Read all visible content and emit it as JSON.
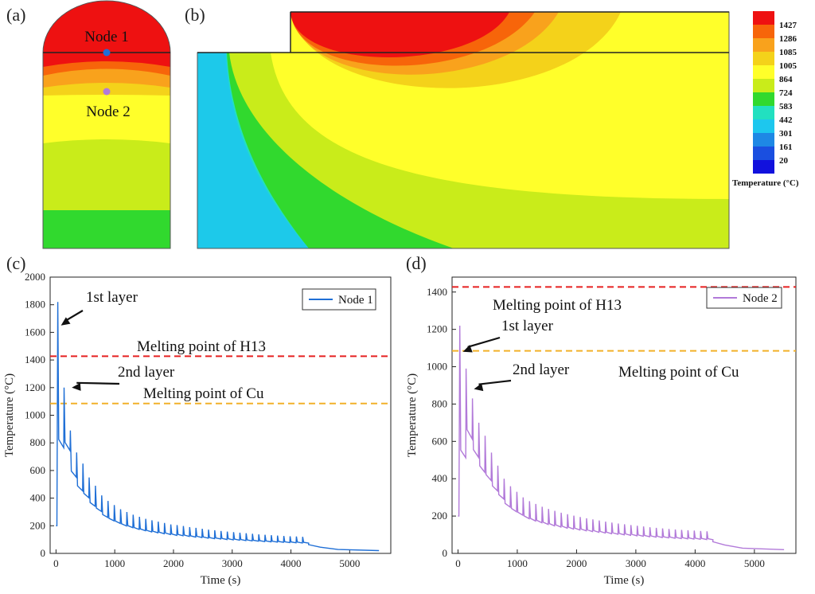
{
  "panels": {
    "a": {
      "label": "(a)",
      "node1": "Node 1",
      "node2": "Node 2"
    },
    "b": {
      "label": "(b)"
    }
  },
  "colorbar": {
    "title": "Temperature (°C)",
    "levels": [
      {
        "value": "1427",
        "color": "#ee1111",
        "label_color": "#e01010"
      },
      {
        "value": "1286",
        "color": "#f7650a",
        "label_color": "#111111"
      },
      {
        "value": "1085",
        "color": "#f9a21c",
        "label_color": "#f08a10"
      },
      {
        "value": "1005",
        "color": "#f4d21a",
        "label_color": "#111111"
      },
      {
        "value": "864",
        "color": "#ffff2a",
        "label_color": "#111111"
      },
      {
        "value": "724",
        "color": "#c9ec1a",
        "label_color": "#111111"
      },
      {
        "value": "583",
        "color": "#31d92e",
        "label_color": "#111111"
      },
      {
        "value": "442",
        "color": "#22e0c0",
        "label_color": "#111111"
      },
      {
        "value": "301",
        "color": "#1dc7ee",
        "label_color": "#111111"
      },
      {
        "value": "161",
        "color": "#1e88e5",
        "label_color": "#111111"
      },
      {
        "value": "20",
        "color": "#1a4fe0",
        "label_color": "#111111"
      },
      {
        "value": "",
        "color": "#1111dd",
        "label_color": "#111111"
      }
    ]
  },
  "chart_data": [
    {
      "panel_label": "(c)",
      "type": "line",
      "xlabel": "Time (s)",
      "ylabel": "Temperature (°C)",
      "xlim": [
        -100,
        5700
      ],
      "ylim": [
        0,
        2000
      ],
      "xticks": [
        0,
        1000,
        2000,
        3000,
        4000,
        5000
      ],
      "yticks": [
        0,
        200,
        400,
        600,
        800,
        1000,
        1200,
        1400,
        1600,
        1800,
        2000
      ],
      "legend": {
        "position": "top-right"
      },
      "series": [
        {
          "name": "Node 1",
          "color": "#1f6fd6",
          "peaks": [
            1820,
            1200,
            890,
            730,
            650,
            550,
            490,
            420,
            380,
            350,
            320,
            300,
            280,
            265,
            250,
            240,
            230,
            220,
            210,
            205,
            198,
            190,
            185,
            178,
            172,
            168,
            162,
            158,
            154,
            150,
            146,
            142,
            138,
            135,
            132,
            129,
            126,
            124,
            122,
            120
          ],
          "start_value": 200,
          "end_value": 20,
          "end_time": 5500
        }
      ],
      "reference_lines": [
        {
          "label": "Melting point of H13",
          "value": 1427,
          "color": "#e62020"
        },
        {
          "label": "Melting point of Cu",
          "value": 1085,
          "color": "#f2b12a"
        }
      ],
      "annotations": [
        {
          "text": "1st layer",
          "target": [
            30,
            1650
          ]
        },
        {
          "text": "2nd layer",
          "target": [
            215,
            1200
          ]
        }
      ]
    },
    {
      "panel_label": "(d)",
      "type": "line",
      "xlabel": "Time (s)",
      "ylabel": "Temperature (°C)",
      "xlim": [
        -100,
        5700
      ],
      "ylim": [
        0,
        1480
      ],
      "xticks": [
        0,
        1000,
        2000,
        3000,
        4000,
        5000
      ],
      "yticks": [
        0,
        200,
        400,
        600,
        800,
        1000,
        1200,
        1400
      ],
      "legend": {
        "position": "top-right"
      },
      "series": [
        {
          "name": "Node 2",
          "color": "#b27ad9",
          "peaks": [
            1220,
            990,
            830,
            700,
            630,
            540,
            470,
            400,
            360,
            330,
            300,
            280,
            265,
            250,
            238,
            228,
            218,
            210,
            202,
            195,
            188,
            182,
            176,
            170,
            165,
            160,
            156,
            152,
            148,
            144,
            140,
            137,
            134,
            131,
            128,
            126,
            124,
            122,
            120,
            118
          ],
          "start_value": 200,
          "end_value": 20,
          "end_time": 5500
        }
      ],
      "reference_lines": [
        {
          "label": "Melting point of H13",
          "value": 1427,
          "color": "#e62020"
        },
        {
          "label": "Melting point of Cu",
          "value": 1085,
          "color": "#f2b12a"
        }
      ],
      "annotations": [
        {
          "text": "1st layer",
          "target": [
            30,
            1080
          ]
        },
        {
          "text": "2nd layer",
          "target": [
            215,
            880
          ]
        }
      ]
    }
  ]
}
